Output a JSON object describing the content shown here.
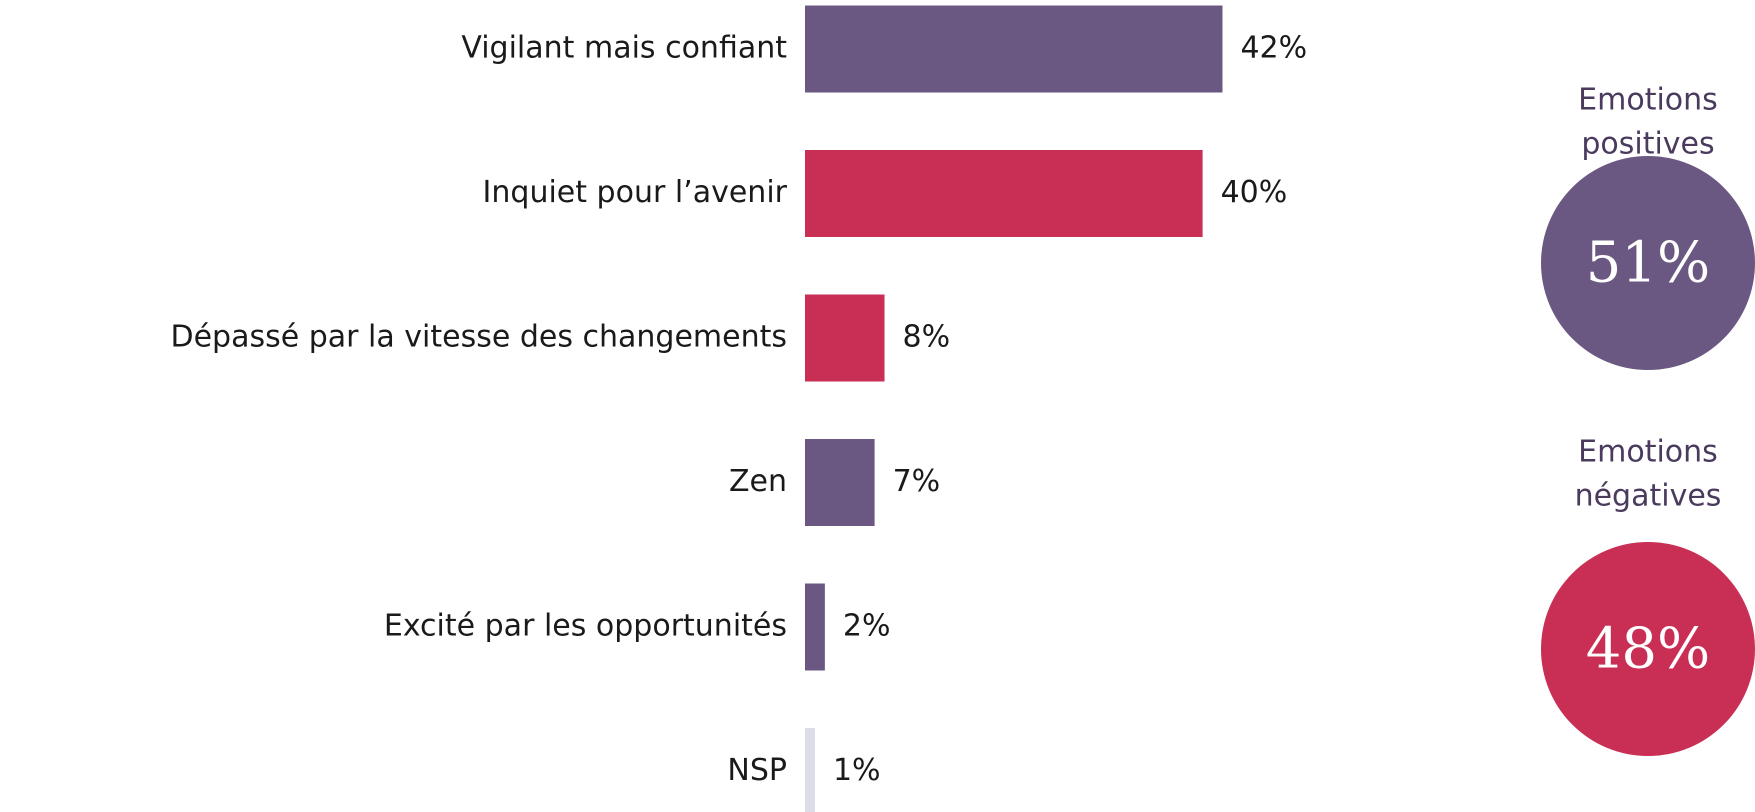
{
  "chart_data": {
    "type": "bar",
    "orientation": "horizontal",
    "categories": [
      "Vigilant mais confiant",
      "Inquiet pour l’avenir",
      "Dépassé par la vitesse des changements",
      "Zen",
      "Excité par les opportunités",
      "NSP"
    ],
    "values": [
      42,
      40,
      8,
      7,
      2,
      1
    ],
    "value_labels": [
      "42%",
      "40%",
      "8%",
      "7%",
      "2%",
      "1%"
    ],
    "colors": [
      "#6a5882",
      "#c92f55",
      "#c92f55",
      "#6a5882",
      "#6a5882",
      "#dcdde8"
    ]
  },
  "summary": [
    {
      "label": [
        "Emotions",
        "positives"
      ],
      "value": 51,
      "value_label": "51%",
      "color": "#6a5882"
    },
    {
      "label": [
        "Emotions",
        "négatives"
      ],
      "value": 48,
      "value_label": "48%",
      "color": "#c92f55"
    }
  ]
}
